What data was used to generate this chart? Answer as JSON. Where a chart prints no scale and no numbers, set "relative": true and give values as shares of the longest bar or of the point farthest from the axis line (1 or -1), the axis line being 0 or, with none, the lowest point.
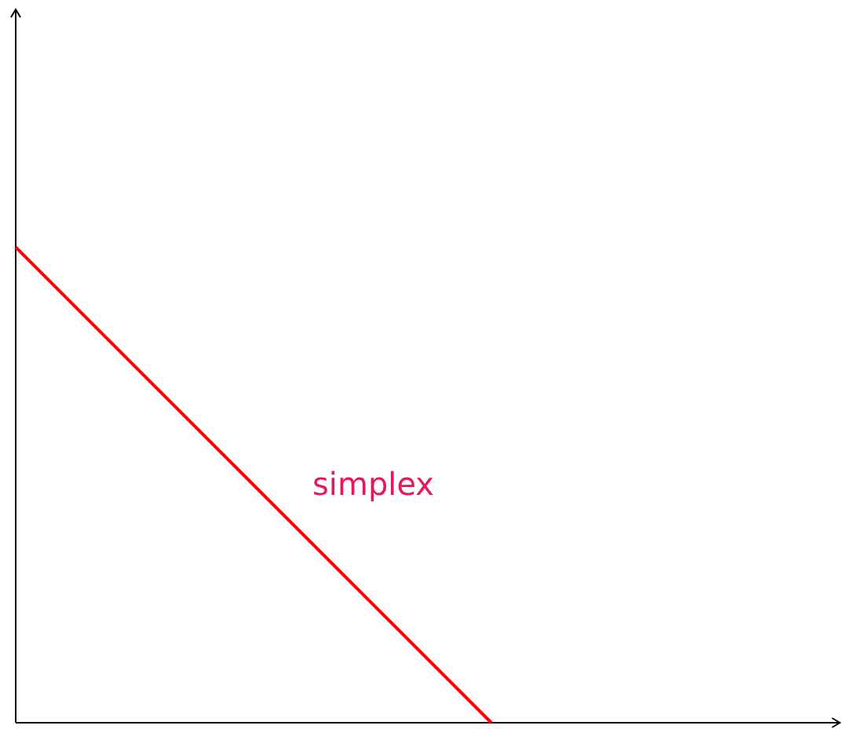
{
  "chart_data": {
    "type": "line",
    "relative": true,
    "categories": [
      null,
      null
    ],
    "series": [
      {
        "color": "#ff0000",
        "values": [
          1,
          0
        ]
      }
    ],
    "annotations": [
      "simplex"
    ]
  }
}
